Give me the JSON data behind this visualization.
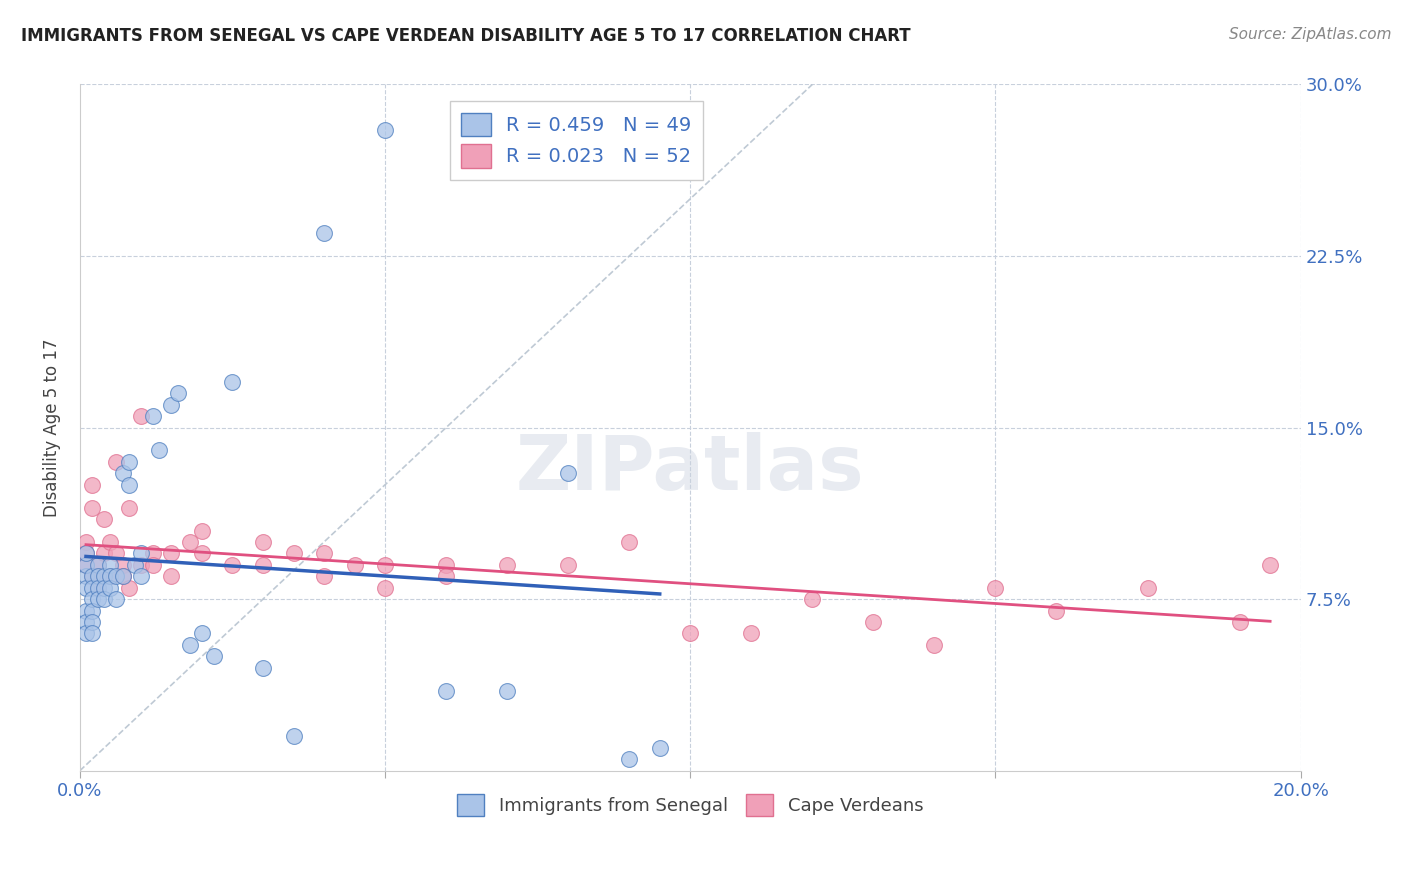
{
  "title": "IMMIGRANTS FROM SENEGAL VS CAPE VERDEAN DISABILITY AGE 5 TO 17 CORRELATION CHART",
  "source": "Source: ZipAtlas.com",
  "ylabel": "Disability Age 5 to 17",
  "xlim": [
    0.0,
    0.2
  ],
  "ylim": [
    0.0,
    0.3
  ],
  "xticks": [
    0.0,
    0.05,
    0.1,
    0.15,
    0.2
  ],
  "xtick_labels": [
    "0.0%",
    "",
    "",
    "",
    "20.0%"
  ],
  "yticks": [
    0.0,
    0.075,
    0.15,
    0.225,
    0.3
  ],
  "ytick_labels_right": [
    "",
    "7.5%",
    "15.0%",
    "22.5%",
    "30.0%"
  ],
  "legend_R1": "R = 0.459",
  "legend_N1": "N = 49",
  "legend_R2": "R = 0.023",
  "legend_N2": "N = 52",
  "color_senegal_fill": "#aac4e8",
  "color_senegal_edge": "#5080c0",
  "color_capeverde_fill": "#f0a0b8",
  "color_capeverde_edge": "#e07090",
  "color_line_senegal": "#3060b8",
  "color_line_capeverde": "#e05080",
  "color_diagonal": "#b8c4d0",
  "color_axis_labels": "#4070c0",
  "background_color": "#ffffff",
  "watermark": "ZIPatlas",
  "senegal_x": [
    0.001,
    0.001,
    0.001,
    0.001,
    0.001,
    0.001,
    0.001,
    0.002,
    0.002,
    0.002,
    0.002,
    0.002,
    0.002,
    0.003,
    0.003,
    0.003,
    0.003,
    0.004,
    0.004,
    0.004,
    0.005,
    0.005,
    0.005,
    0.006,
    0.006,
    0.007,
    0.007,
    0.008,
    0.008,
    0.009,
    0.01,
    0.01,
    0.012,
    0.013,
    0.015,
    0.016,
    0.018,
    0.02,
    0.022,
    0.025,
    0.03,
    0.035,
    0.04,
    0.05,
    0.06,
    0.07,
    0.08,
    0.09,
    0.095
  ],
  "senegal_y": [
    0.085,
    0.09,
    0.095,
    0.08,
    0.07,
    0.065,
    0.06,
    0.085,
    0.08,
    0.075,
    0.07,
    0.065,
    0.06,
    0.09,
    0.085,
    0.08,
    0.075,
    0.085,
    0.08,
    0.075,
    0.09,
    0.085,
    0.08,
    0.085,
    0.075,
    0.13,
    0.085,
    0.135,
    0.125,
    0.09,
    0.095,
    0.085,
    0.155,
    0.14,
    0.16,
    0.165,
    0.055,
    0.06,
    0.05,
    0.17,
    0.045,
    0.015,
    0.235,
    0.28,
    0.035,
    0.035,
    0.13,
    0.005,
    0.01
  ],
  "capeverde_x": [
    0.001,
    0.001,
    0.001,
    0.002,
    0.002,
    0.002,
    0.003,
    0.003,
    0.003,
    0.004,
    0.004,
    0.005,
    0.005,
    0.006,
    0.006,
    0.007,
    0.007,
    0.008,
    0.008,
    0.01,
    0.01,
    0.012,
    0.012,
    0.015,
    0.015,
    0.018,
    0.02,
    0.02,
    0.025,
    0.03,
    0.03,
    0.035,
    0.04,
    0.04,
    0.045,
    0.05,
    0.05,
    0.06,
    0.06,
    0.07,
    0.08,
    0.09,
    0.1,
    0.11,
    0.12,
    0.13,
    0.14,
    0.15,
    0.16,
    0.175,
    0.19,
    0.195
  ],
  "capeverde_y": [
    0.1,
    0.095,
    0.09,
    0.125,
    0.115,
    0.085,
    0.09,
    0.085,
    0.08,
    0.11,
    0.095,
    0.1,
    0.085,
    0.135,
    0.095,
    0.09,
    0.085,
    0.115,
    0.08,
    0.155,
    0.09,
    0.095,
    0.09,
    0.095,
    0.085,
    0.1,
    0.105,
    0.095,
    0.09,
    0.1,
    0.09,
    0.095,
    0.095,
    0.085,
    0.09,
    0.09,
    0.08,
    0.09,
    0.085,
    0.09,
    0.09,
    0.1,
    0.06,
    0.06,
    0.075,
    0.065,
    0.055,
    0.08,
    0.07,
    0.08,
    0.065,
    0.09
  ]
}
